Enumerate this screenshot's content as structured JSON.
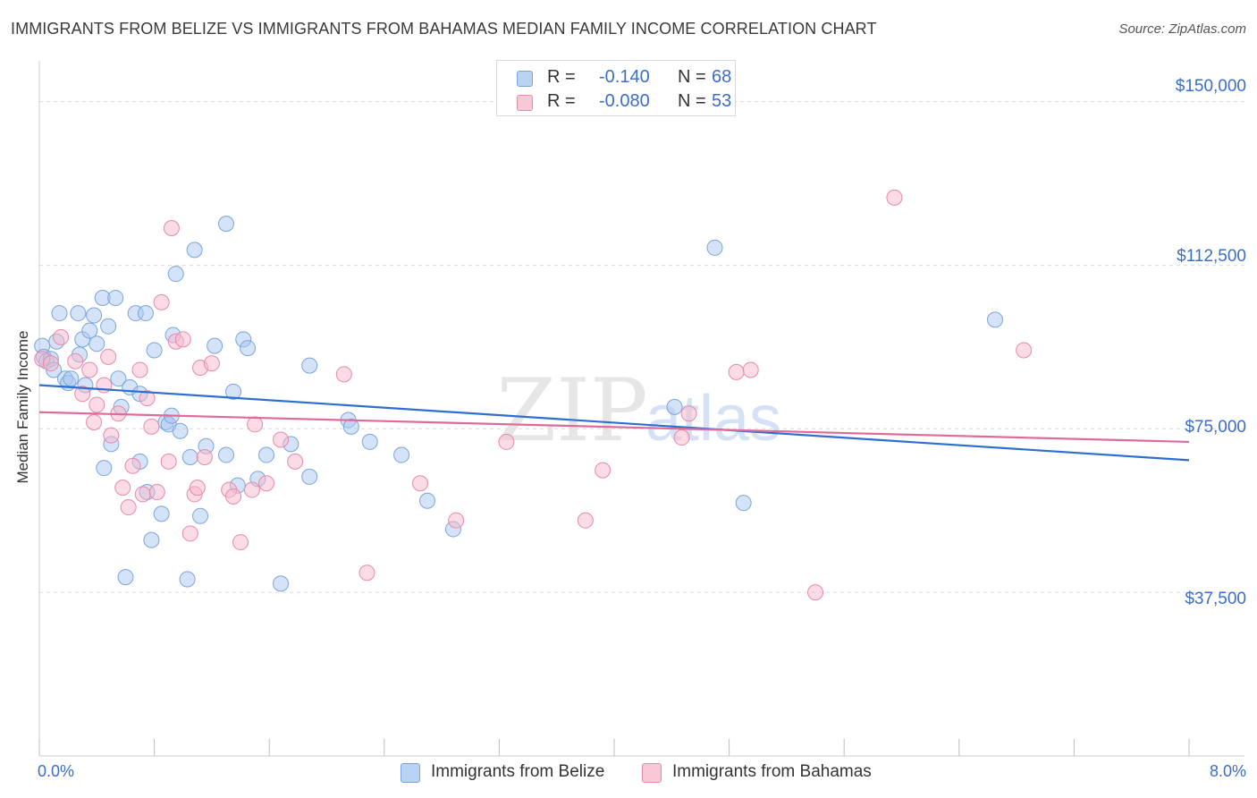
{
  "chart_data": {
    "type": "scatter",
    "title": "IMMIGRANTS FROM BELIZE VS IMMIGRANTS FROM BAHAMAS MEDIAN FAMILY INCOME CORRELATION CHART",
    "source": "Source: ZipAtlas.com",
    "xlabel": "",
    "ylabel": "Median Family Income",
    "xlim": [
      0,
      8
    ],
    "ylim": [
      0,
      157500
    ],
    "x_tick_labels": {
      "min": "0.0%",
      "max": "8.0%"
    },
    "y_ticks": [
      {
        "value": 37500,
        "label": "$37,500"
      },
      {
        "value": 75000,
        "label": "$75,000"
      },
      {
        "value": 112500,
        "label": "$112,500"
      },
      {
        "value": 150000,
        "label": "$150,000"
      }
    ],
    "watermark": {
      "zip": "ZIP",
      "atlas": "atlas"
    },
    "legend": [
      {
        "r_label": "R =",
        "r_value": "-0.140",
        "n_label": "N =",
        "n_value": "68"
      },
      {
        "r_label": "R =",
        "r_value": "-0.080",
        "n_label": "N =",
        "n_value": "53"
      }
    ],
    "series": [
      {
        "name": "Immigrants from Belize",
        "color": "#a9c8f0",
        "stroke": "#7aa5dc",
        "line_color": "#2d6fd0",
        "trend": [
          [
            0.0,
            85000
          ],
          [
            8.0,
            67800
          ]
        ],
        "points": [
          [
            0.02,
            94000
          ],
          [
            0.03,
            91500
          ],
          [
            0.05,
            90500
          ],
          [
            0.08,
            91000
          ],
          [
            0.1,
            88500
          ],
          [
            0.12,
            95000
          ],
          [
            0.14,
            101500
          ],
          [
            0.18,
            86500
          ],
          [
            0.2,
            85500
          ],
          [
            0.22,
            86500
          ],
          [
            0.27,
            101500
          ],
          [
            0.28,
            92000
          ],
          [
            0.3,
            95500
          ],
          [
            0.32,
            85000
          ],
          [
            0.35,
            97500
          ],
          [
            0.38,
            101000
          ],
          [
            0.4,
            94500
          ],
          [
            0.44,
            105000
          ],
          [
            0.48,
            98500
          ],
          [
            0.53,
            105000
          ],
          [
            0.55,
            86500
          ],
          [
            0.57,
            80000
          ],
          [
            0.63,
            84500
          ],
          [
            0.67,
            101500
          ],
          [
            0.7,
            83000
          ],
          [
            0.74,
            101500
          ],
          [
            0.75,
            60500
          ],
          [
            0.78,
            49500
          ],
          [
            0.8,
            93000
          ],
          [
            0.85,
            55500
          ],
          [
            0.88,
            76500
          ],
          [
            0.9,
            76000
          ],
          [
            0.92,
            78000
          ],
          [
            0.93,
            96500
          ],
          [
            0.95,
            110500
          ],
          [
            0.98,
            74500
          ],
          [
            1.03,
            40500
          ],
          [
            1.05,
            68500
          ],
          [
            1.08,
            116000
          ],
          [
            1.12,
            55000
          ],
          [
            1.16,
            71000
          ],
          [
            1.22,
            94000
          ],
          [
            1.3,
            69000
          ],
          [
            1.3,
            122000
          ],
          [
            1.35,
            83500
          ],
          [
            1.38,
            62000
          ],
          [
            1.42,
            95500
          ],
          [
            1.45,
            93500
          ],
          [
            1.52,
            63500
          ],
          [
            1.58,
            69000
          ],
          [
            1.68,
            39500
          ],
          [
            1.75,
            71500
          ],
          [
            1.88,
            64000
          ],
          [
            1.88,
            89500
          ],
          [
            2.15,
            77000
          ],
          [
            2.17,
            75500
          ],
          [
            2.3,
            72000
          ],
          [
            2.52,
            69000
          ],
          [
            2.7,
            58500
          ],
          [
            2.88,
            52000
          ],
          [
            4.42,
            80000
          ],
          [
            4.7,
            116500
          ],
          [
            4.9,
            58000
          ],
          [
            6.65,
            100000
          ],
          [
            0.6,
            41000
          ],
          [
            0.45,
            66000
          ],
          [
            0.5,
            71500
          ],
          [
            0.7,
            67500
          ]
        ]
      },
      {
        "name": "Immigrants from Bahamas",
        "color": "#f7b8cc",
        "stroke": "#e88aa8",
        "line_color": "#e06b9a",
        "trend": [
          [
            0.0,
            78800
          ],
          [
            8.0,
            72000
          ]
        ],
        "points": [
          [
            0.02,
            91000
          ],
          [
            0.08,
            90000
          ],
          [
            0.15,
            96000
          ],
          [
            0.25,
            90500
          ],
          [
            0.3,
            83000
          ],
          [
            0.35,
            88500
          ],
          [
            0.38,
            76500
          ],
          [
            0.4,
            80500
          ],
          [
            0.45,
            85000
          ],
          [
            0.48,
            91500
          ],
          [
            0.5,
            73500
          ],
          [
            0.55,
            78500
          ],
          [
            0.58,
            61500
          ],
          [
            0.62,
            57000
          ],
          [
            0.65,
            66500
          ],
          [
            0.7,
            88500
          ],
          [
            0.72,
            60000
          ],
          [
            0.75,
            82000
          ],
          [
            0.78,
            75500
          ],
          [
            0.82,
            60500
          ],
          [
            0.85,
            104000
          ],
          [
            0.9,
            67500
          ],
          [
            0.92,
            121000
          ],
          [
            0.95,
            95000
          ],
          [
            1.0,
            95500
          ],
          [
            1.05,
            51000
          ],
          [
            1.08,
            60000
          ],
          [
            1.1,
            61500
          ],
          [
            1.12,
            89000
          ],
          [
            1.15,
            68500
          ],
          [
            1.2,
            90000
          ],
          [
            1.32,
            61000
          ],
          [
            1.35,
            59500
          ],
          [
            1.4,
            49000
          ],
          [
            1.48,
            61000
          ],
          [
            1.5,
            76000
          ],
          [
            1.58,
            62500
          ],
          [
            1.68,
            72500
          ],
          [
            1.78,
            67500
          ],
          [
            2.12,
            87500
          ],
          [
            2.28,
            42000
          ],
          [
            2.65,
            62500
          ],
          [
            2.9,
            54000
          ],
          [
            3.25,
            72000
          ],
          [
            3.8,
            54000
          ],
          [
            3.92,
            65500
          ],
          [
            4.47,
            73000
          ],
          [
            4.52,
            78500
          ],
          [
            4.85,
            88000
          ],
          [
            4.95,
            88500
          ],
          [
            5.4,
            37500
          ],
          [
            5.95,
            128000
          ],
          [
            6.85,
            93000
          ]
        ]
      }
    ]
  }
}
